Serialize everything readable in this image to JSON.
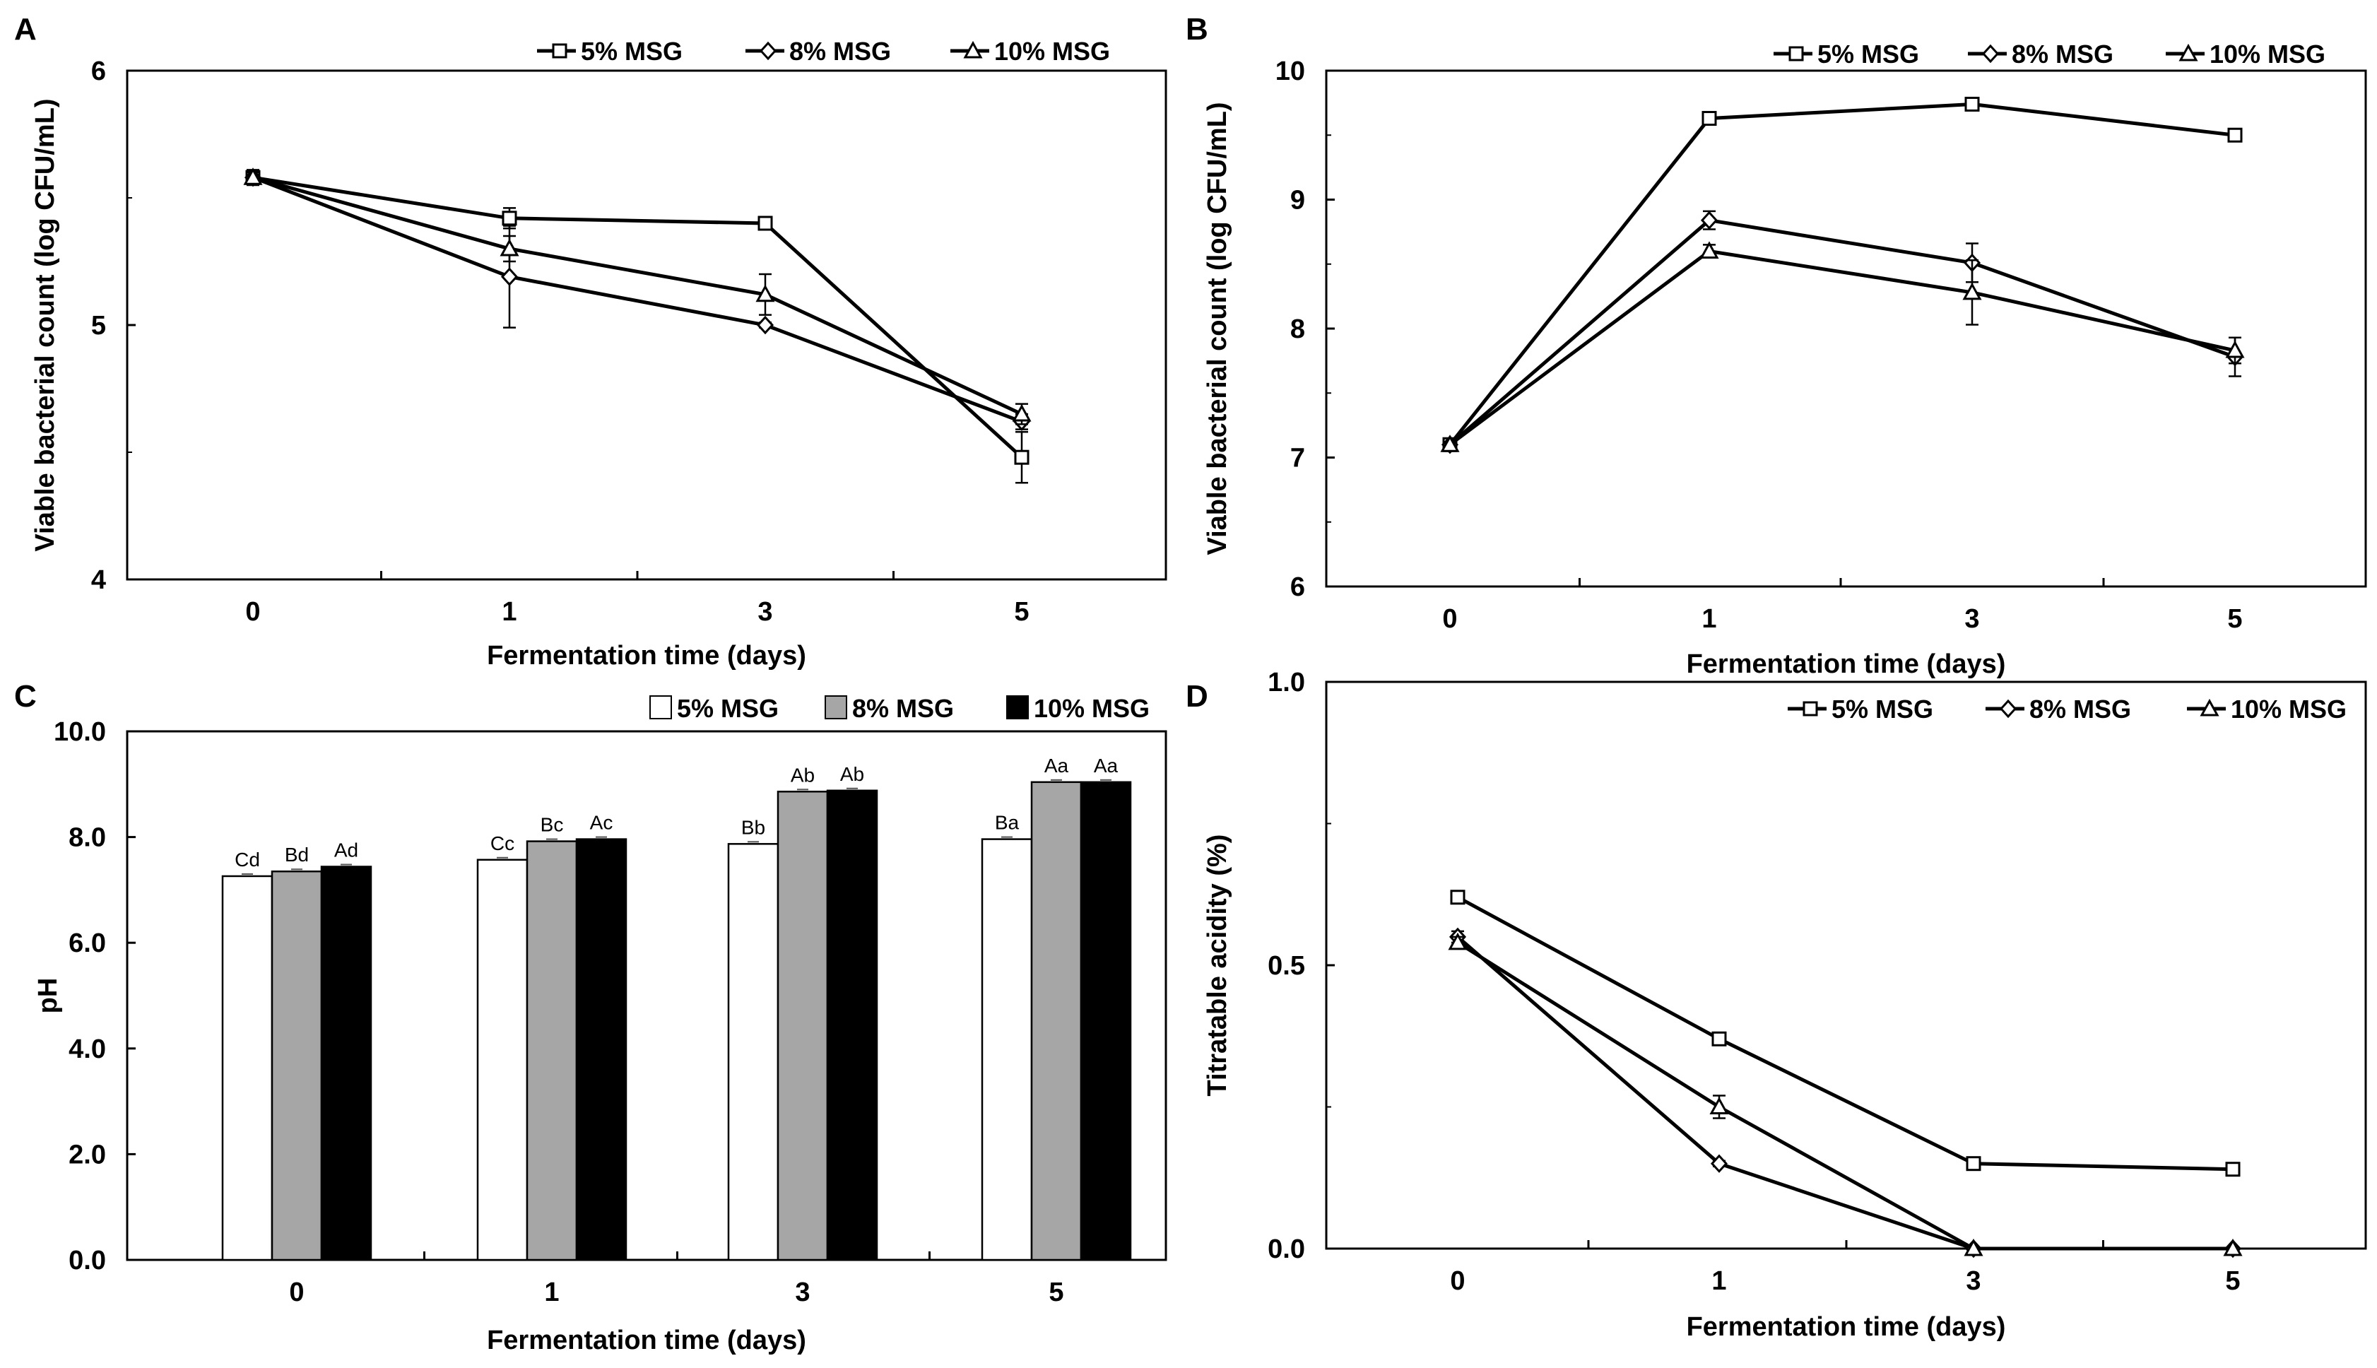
{
  "chart_data": [
    {
      "panel": "A",
      "type": "line",
      "xlabel": "Fermentation time (days)",
      "ylabel": "Viable bacterial count (log CFU/mL)",
      "categories": [
        "0",
        "1",
        "3",
        "5"
      ],
      "ylim": [
        4,
        6
      ],
      "yticks": [
        "4",
        "5",
        "6"
      ],
      "series": [
        {
          "name": "5% MSG",
          "marker": "square",
          "values": [
            5.58,
            5.42,
            5.4,
            4.48
          ],
          "errors": [
            0.03,
            0.04,
            0.01,
            0.1
          ]
        },
        {
          "name": "8% MSG",
          "marker": "diamond",
          "values": [
            5.58,
            5.19,
            5.0,
            4.62
          ],
          "errors": [
            0.02,
            0.2,
            0.01,
            0.03
          ]
        },
        {
          "name": "10% MSG",
          "marker": "triangle",
          "values": [
            5.58,
            5.3,
            5.12,
            4.65
          ],
          "errors": [
            0.02,
            0.05,
            0.08,
            0.04
          ]
        }
      ]
    },
    {
      "panel": "B",
      "type": "line",
      "xlabel": "Fermentation time (days)",
      "ylabel": "Viable bacterial count (log CFU/mL)",
      "categories": [
        "0",
        "1",
        "3",
        "5"
      ],
      "ylim": [
        6,
        10
      ],
      "yticks": [
        "6",
        "7",
        "8",
        "9",
        "10"
      ],
      "series": [
        {
          "name": "5% MSG",
          "marker": "square",
          "values": [
            7.1,
            9.63,
            9.74,
            9.5
          ],
          "errors": [
            0.02,
            0.02,
            0.02,
            0.02
          ]
        },
        {
          "name": "8% MSG",
          "marker": "diamond",
          "values": [
            7.1,
            8.84,
            8.51,
            7.78
          ],
          "errors": [
            0.02,
            0.07,
            0.15,
            0.15
          ]
        },
        {
          "name": "10% MSG",
          "marker": "triangle",
          "values": [
            7.1,
            8.6,
            8.28,
            7.83
          ],
          "errors": [
            0.02,
            0.05,
            0.25,
            0.1
          ]
        }
      ]
    },
    {
      "panel": "C",
      "type": "bar",
      "xlabel": "Fermentation time (days)",
      "ylabel": "pH",
      "categories": [
        "0",
        "1",
        "3",
        "5"
      ],
      "ylim": [
        0,
        10
      ],
      "yticks": [
        "0.0",
        "2.0",
        "4.0",
        "6.0",
        "8.0",
        "10.0"
      ],
      "series": [
        {
          "name": "5% MSG",
          "color": "#ffffff",
          "values": [
            7.26,
            7.57,
            7.87,
            7.96
          ],
          "labels": [
            "Cd",
            "Cc",
            "Bb",
            "Ba"
          ]
        },
        {
          "name": "8% MSG",
          "color": "#a6a6a6",
          "values": [
            7.35,
            7.92,
            8.86,
            9.04
          ],
          "labels": [
            "Bd",
            "Bc",
            "Ab",
            "Aa"
          ]
        },
        {
          "name": "10% MSG",
          "color": "#000000",
          "values": [
            7.44,
            7.96,
            8.88,
            9.04
          ],
          "labels": [
            "Ad",
            "Ac",
            "Ab",
            "Aa"
          ]
        }
      ]
    },
    {
      "panel": "D",
      "type": "line",
      "xlabel": "Fermentation time (days)",
      "ylabel": "Titratable acidity (%)",
      "categories": [
        "0",
        "1",
        "3",
        "5"
      ],
      "ylim": [
        0,
        1
      ],
      "yticks": [
        "0.0",
        "0.5",
        "1.0"
      ],
      "series": [
        {
          "name": "5% MSG",
          "marker": "square",
          "values": [
            0.62,
            0.37,
            0.15,
            0.14
          ],
          "errors": [
            0.005,
            0.005,
            0.005,
            0.005
          ]
        },
        {
          "name": "8% MSG",
          "marker": "diamond",
          "values": [
            0.55,
            0.15,
            0.0,
            0.0
          ],
          "errors": [
            0.01,
            0.005,
            0.0,
            0.0
          ]
        },
        {
          "name": "10% MSG",
          "marker": "triangle",
          "values": [
            0.54,
            0.25,
            0.0,
            0.0
          ],
          "errors": [
            0.01,
            0.02,
            0.0,
            0.0
          ]
        }
      ]
    }
  ]
}
